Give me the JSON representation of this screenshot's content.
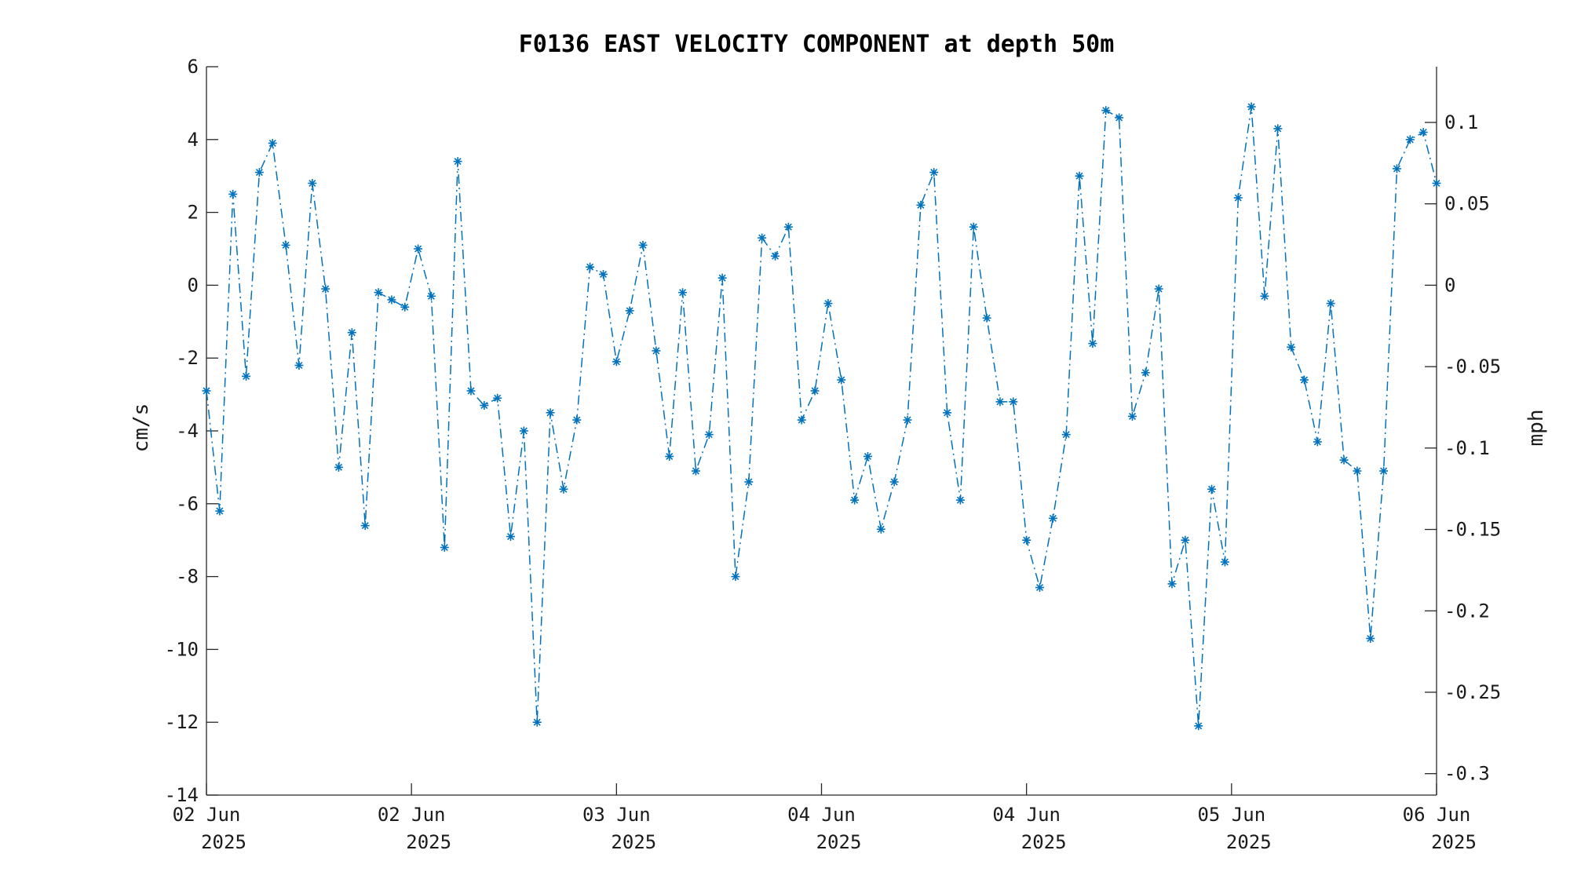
{
  "chart_data": {
    "type": "line",
    "title": "F0136 EAST VELOCITY COMPONENT at depth 50m",
    "ylabel": "cm/s",
    "y2label": "mph",
    "ylim": [
      -14,
      6
    ],
    "yticks": [
      6,
      4,
      2,
      0,
      -2,
      -4,
      -6,
      -8,
      -10,
      -12,
      -14
    ],
    "y2ticks": [
      0.1,
      0.05,
      0,
      -0.05,
      -0.1,
      -0.15,
      -0.2,
      -0.25,
      -0.3
    ],
    "xticks": [
      {
        "day": "02 Jun",
        "year": "2025"
      },
      {
        "day": "02 Jun",
        "year": "2025"
      },
      {
        "day": "03 Jun",
        "year": "2025"
      },
      {
        "day": "04 Jun",
        "year": "2025"
      },
      {
        "day": "04 Jun",
        "year": "2025"
      },
      {
        "day": "05 Jun",
        "year": "2025"
      },
      {
        "day": "06 Jun",
        "year": "2025"
      }
    ],
    "grid": false,
    "line_style": "dash-dot",
    "marker": "asterisk",
    "series_color": "#0072bd",
    "values": [
      -2.9,
      -6.2,
      2.5,
      -2.5,
      3.1,
      3.9,
      1.1,
      -2.2,
      2.8,
      -0.1,
      -5.0,
      -1.3,
      -6.6,
      -0.2,
      -0.4,
      -0.6,
      1.0,
      -0.3,
      -7.2,
      3.4,
      -2.9,
      -3.3,
      -3.1,
      -6.9,
      -4.0,
      -12.0,
      -3.5,
      -5.6,
      -3.7,
      0.5,
      0.3,
      -2.1,
      -0.7,
      1.1,
      -1.8,
      -4.7,
      -0.2,
      -5.1,
      -4.1,
      0.2,
      -8.0,
      -5.4,
      1.3,
      0.8,
      1.6,
      -3.7,
      -2.9,
      -0.5,
      -2.6,
      -5.9,
      -4.7,
      -6.7,
      -5.4,
      -3.7,
      2.2,
      3.1,
      -3.5,
      -5.9,
      1.6,
      -0.9,
      -3.2,
      -3.2,
      -7.0,
      -8.3,
      -6.4,
      -4.1,
      3.0,
      -1.6,
      4.8,
      4.6,
      -3.6,
      -2.4,
      -0.1,
      -8.2,
      -7.0,
      -12.1,
      -5.6,
      -7.6,
      2.4,
      4.9,
      -0.3,
      4.3,
      -1.7,
      -2.6,
      -4.3,
      -0.5,
      -4.8,
      -5.1,
      -9.7,
      -5.1,
      3.2,
      4.0,
      4.2,
      2.8
    ]
  }
}
